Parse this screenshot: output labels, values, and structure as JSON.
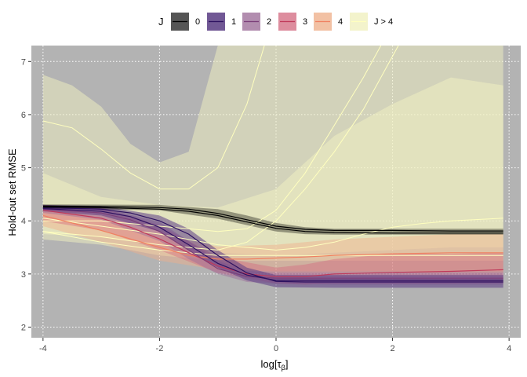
{
  "chart_data": {
    "type": "line",
    "xlabel": "log[τ_β]",
    "ylabel": "Hold-out set RMSE",
    "xlim": [
      -4.2,
      4.2
    ],
    "ylim": [
      1.8,
      7.3
    ],
    "x_ticks": [
      -4,
      -2,
      0,
      2,
      4
    ],
    "y_ticks": [
      2,
      3,
      4,
      5,
      6,
      7
    ],
    "x_tick_labels": [
      "-4",
      "-2",
      "0",
      "2",
      "4"
    ],
    "y_tick_labels": [
      "2",
      "3",
      "4",
      "5",
      "6",
      "7"
    ],
    "panel_background": "#b3b3b3",
    "grid": "white dotted",
    "legend": {
      "position": "top",
      "title": "J",
      "labels": [
        "0",
        "1",
        "2",
        "3",
        "4",
        "J > 4"
      ]
    },
    "series": [
      {
        "name": "0",
        "color": "#000000",
        "band_color": "#000000",
        "band_opacity": 0.35,
        "lines": [
          {
            "x": [
              -4,
              -3,
              -2,
              -1.5,
              -1,
              -0.5,
              0,
              0.5,
              1,
              2,
              3,
              3.9
            ],
            "y": [
              4.28,
              4.27,
              4.25,
              4.22,
              4.14,
              4.02,
              3.9,
              3.84,
              3.82,
              3.82,
              3.81,
              3.81
            ]
          },
          {
            "x": [
              -4,
              -3,
              -2,
              -1.5,
              -1,
              -0.5,
              0,
              0.5,
              1,
              2,
              3,
              3.9
            ],
            "y": [
              4.26,
              4.25,
              4.22,
              4.18,
              4.1,
              3.98,
              3.86,
              3.8,
              3.78,
              3.77,
              3.77,
              3.77
            ]
          }
        ],
        "band": {
          "x": [
            -4,
            -2,
            -1,
            -0.5,
            0,
            0.5,
            1,
            2,
            3,
            3.9
          ],
          "lower": [
            4.23,
            4.2,
            4.04,
            3.92,
            3.8,
            3.75,
            3.74,
            3.74,
            3.74,
            3.74
          ],
          "upper": [
            4.31,
            4.3,
            4.22,
            4.1,
            3.96,
            3.88,
            3.85,
            3.85,
            3.85,
            3.85
          ]
        }
      },
      {
        "name": "1",
        "color": "#2d1160",
        "band_color": "#5b3d85",
        "band_opacity": 0.55,
        "lines": [
          {
            "x": [
              -4,
              -3,
              -2.5,
              -2,
              -1.5,
              -1,
              -0.5,
              0,
              0.5,
              1,
              2,
              3,
              3.9
            ],
            "y": [
              4.25,
              4.22,
              4.15,
              4.0,
              3.75,
              3.35,
              3.02,
              2.86,
              2.85,
              2.85,
              2.85,
              2.85,
              2.85
            ]
          },
          {
            "x": [
              -4,
              -3,
              -2.5,
              -2,
              -1.5,
              -1,
              -0.5,
              0,
              0.5,
              1,
              2,
              3,
              3.9
            ],
            "y": [
              4.23,
              4.18,
              4.08,
              3.88,
              3.55,
              3.2,
              2.98,
              2.88,
              2.88,
              2.88,
              2.88,
              2.88,
              2.88
            ]
          }
        ],
        "band": {
          "x": [
            -4,
            -3,
            -2,
            -1.5,
            -1,
            -0.5,
            0,
            1,
            2,
            3,
            3.9
          ],
          "lower": [
            4.18,
            4.1,
            3.8,
            3.45,
            3.12,
            2.88,
            2.75,
            2.74,
            2.74,
            2.74,
            2.74
          ],
          "upper": [
            4.3,
            4.28,
            4.1,
            3.85,
            3.45,
            3.12,
            2.98,
            2.98,
            2.98,
            2.98,
            2.98
          ]
        }
      },
      {
        "name": "2",
        "color": "#7a3e78",
        "band_color": "#9c6b98",
        "band_opacity": 0.45,
        "lines": [
          {
            "x": [
              -4,
              -3,
              -2.5,
              -2,
              -1.5,
              -1,
              -0.5,
              0,
              1,
              2,
              3,
              3.9
            ],
            "y": [
              4.22,
              4.15,
              4.02,
              3.8,
              3.45,
              3.1,
              2.95,
              2.92,
              2.92,
              2.92,
              2.92,
              2.92
            ]
          }
        ],
        "band": {
          "x": [
            -4,
            -3,
            -2,
            -1.5,
            -1,
            -0.5,
            0,
            1,
            2,
            3,
            3.9
          ],
          "lower": [
            4.15,
            4.02,
            3.62,
            3.28,
            3.0,
            2.85,
            2.82,
            2.8,
            2.8,
            2.8,
            2.8
          ],
          "upper": [
            4.3,
            4.25,
            3.98,
            3.62,
            3.25,
            3.06,
            3.02,
            3.02,
            3.02,
            3.02,
            3.02
          ]
        }
      },
      {
        "name": "3",
        "color": "#c0395a",
        "band_color": "#d4627a",
        "band_opacity": 0.4,
        "lines": [
          {
            "x": [
              -4,
              -3,
              -2.5,
              -2,
              -1.5,
              -1,
              -0.5,
              0,
              0.5,
              1,
              2,
              3,
              3.9
            ],
            "y": [
              4.2,
              4.05,
              3.88,
              3.66,
              3.4,
              3.15,
              3.0,
              2.95,
              2.95,
              3.0,
              3.03,
              3.05,
              3.08
            ]
          }
        ],
        "band": {
          "x": [
            -4,
            -3,
            -2,
            -1,
            0,
            0.5,
            1,
            2,
            3,
            3.9
          ],
          "lower": [
            4.0,
            3.82,
            3.45,
            3.02,
            2.82,
            2.8,
            2.82,
            2.82,
            2.82,
            2.83
          ],
          "upper": [
            4.3,
            4.25,
            3.92,
            3.32,
            3.12,
            3.18,
            3.28,
            3.38,
            3.38,
            3.4
          ]
        }
      },
      {
        "name": "4",
        "color": "#f08060",
        "band_color": "#f2b08a",
        "band_opacity": 0.45,
        "lines": [
          {
            "x": [
              -4,
              -3,
              -2,
              -1.5,
              -1,
              -0.5,
              0,
              0.5,
              1,
              2,
              3,
              3.9
            ],
            "y": [
              4.1,
              3.82,
              3.5,
              3.35,
              3.28,
              3.28,
              3.3,
              3.32,
              3.35,
              3.38,
              3.4,
              3.4
            ]
          }
        ],
        "band": {
          "x": [
            -4,
            -3,
            -2,
            -1,
            0,
            1,
            2,
            3,
            3.9
          ],
          "lower": [
            3.9,
            3.6,
            3.25,
            3.08,
            3.05,
            3.05,
            3.05,
            3.05,
            3.05
          ],
          "upper": [
            4.3,
            4.05,
            3.75,
            3.52,
            3.55,
            3.65,
            3.7,
            3.75,
            3.75
          ]
        }
      },
      {
        "name": "J > 4",
        "color": "#ffffbf",
        "band_color": "#f2f2c2",
        "band_opacity": 0.5,
        "lines": [
          {
            "x": [
              -4,
              -3.5,
              -3,
              -2.5,
              -2,
              -1.5,
              -1,
              -0.5,
              -0.2
            ],
            "y": [
              5.88,
              5.75,
              5.35,
              4.9,
              4.6,
              4.6,
              5.0,
              6.2,
              7.3
            ]
          },
          {
            "x": [
              -4,
              -3,
              -2,
              -1.5,
              -1,
              -0.5,
              0,
              0.5,
              1,
              1.5,
              1.8
            ],
            "y": [
              4.0,
              4.0,
              3.9,
              3.85,
              3.8,
              3.85,
              4.2,
              4.9,
              5.8,
              6.7,
              7.3
            ]
          },
          {
            "x": [
              -4,
              -3,
              -2,
              -1,
              -0.5,
              0,
              0.5,
              1,
              1.5,
              2.1
            ],
            "y": [
              3.8,
              3.7,
              3.55,
              3.45,
              3.6,
              4.0,
              4.6,
              5.3,
              6.1,
              7.3
            ]
          },
          {
            "x": [
              -4,
              -3,
              -2,
              -1,
              0,
              0.5,
              1,
              1.5,
              2,
              2.5,
              3,
              3.9
            ],
            "y": [
              4.05,
              3.9,
              3.75,
              3.55,
              3.45,
              3.5,
              3.6,
              3.75,
              3.88,
              3.95,
              4.0,
              4.05
            ]
          },
          {
            "x": [
              -4,
              -3,
              -2,
              -1,
              0,
              1,
              2,
              3,
              3.9
            ],
            "y": [
              3.8,
              3.6,
              3.45,
              3.35,
              3.35,
              3.35,
              3.35,
              3.35,
              3.35
            ]
          }
        ],
        "bands": [
          {
            "x": [
              -4,
              -3.5,
              -3,
              -2.5,
              -2,
              -1.5,
              -1,
              -0.5,
              0,
              0.5,
              1,
              1.5,
              2,
              3,
              3.9
            ],
            "lower": [
              3.65,
              3.6,
              3.55,
              3.45,
              3.35,
              3.3,
              3.25,
              3.25,
              3.25,
              3.25,
              3.25,
              3.25,
              3.25,
              3.25,
              3.25
            ],
            "upper": [
              6.75,
              6.55,
              6.15,
              5.45,
              5.1,
              5.3,
              7.3,
              7.3,
              7.3,
              7.3,
              7.3,
              7.3,
              7.3,
              7.3,
              7.3
            ]
          },
          {
            "x": [
              -4,
              -3,
              -2,
              -1,
              0,
              1,
              2,
              3,
              3.9
            ],
            "lower": [
              3.75,
              3.7,
              3.55,
              3.4,
              3.35,
              3.4,
              3.45,
              3.5,
              3.5
            ],
            "upper": [
              4.9,
              4.45,
              4.3,
              4.25,
              4.6,
              5.6,
              6.2,
              6.7,
              6.55
            ]
          }
        ]
      }
    ]
  }
}
